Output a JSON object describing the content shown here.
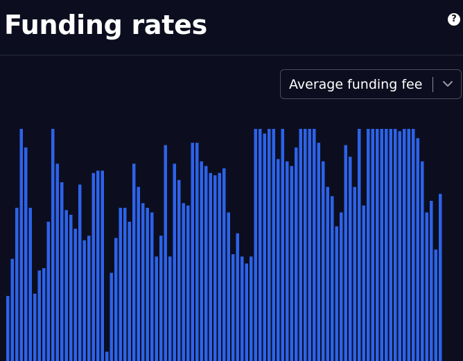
{
  "header": {
    "title": "Funding rates",
    "help_icon": "question-circle-icon"
  },
  "dropdown": {
    "selected": "Average funding fee",
    "icon": "chevron-down-icon"
  },
  "colors": {
    "background": "#0c0e1f",
    "bar": "#2d63ea"
  },
  "chart_data": {
    "type": "bar",
    "title": "",
    "xlabel": "",
    "ylabel": "",
    "ylim": [
      0,
      100
    ],
    "grid": false,
    "values": [
      28,
      44,
      66,
      100,
      92,
      66,
      29,
      39,
      40,
      60,
      100,
      85,
      77,
      65,
      63,
      57,
      76,
      52,
      54,
      81,
      82,
      82,
      4,
      38,
      53,
      66,
      66,
      60,
      85,
      75,
      68,
      66,
      64,
      45,
      54,
      93,
      45,
      85,
      78,
      68,
      67,
      94,
      94,
      86,
      84,
      81,
      80,
      81,
      83,
      64,
      46,
      55,
      45,
      42,
      45,
      100,
      100,
      98,
      100,
      100,
      87,
      100,
      86,
      84,
      92,
      100,
      100,
      100,
      100,
      94,
      86,
      75,
      71,
      58,
      64,
      93,
      88,
      75,
      100,
      67,
      100,
      100,
      100,
      100,
      100,
      100,
      100,
      99,
      100,
      100,
      100,
      96,
      86,
      64,
      69,
      48,
      72
    ]
  }
}
